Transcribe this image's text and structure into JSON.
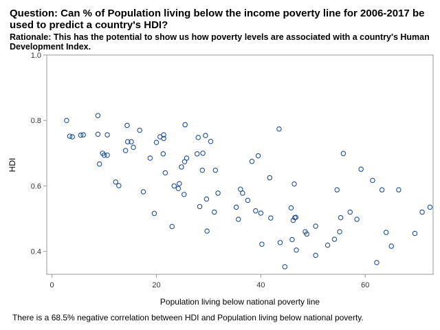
{
  "title": "Question: Can % of Population living below the income poverty line for 2006-2017 be used to predict a country's HDI?",
  "subtitle": "Rationale: This has the potential to show us how poverty levels are associated with a country's Human Development Index.",
  "footnote": "There is a 68.5% negative correlation between HDI and Population living below national poverty.",
  "colors": {
    "marker": "#1f4e9e",
    "frame": "#999999"
  },
  "chart_data": {
    "type": "scatter",
    "xlabel": "Population living below national poverty line",
    "ylabel": "HDI",
    "xlim": [
      -1,
      73
    ],
    "ylim": [
      0.33,
      1.0
    ],
    "xticks": [
      "0",
      "20",
      "40",
      "60"
    ],
    "xtick_values": [
      0,
      20,
      40,
      60
    ],
    "yticks": [
      "0.4",
      "0.6",
      "0.8",
      "1.0"
    ],
    "ytick_values": [
      0.4,
      0.6,
      0.8,
      1.0
    ],
    "points": [
      [
        2.8,
        0.8
      ],
      [
        3.4,
        0.752
      ],
      [
        3.9,
        0.75
      ],
      [
        5.5,
        0.755
      ],
      [
        6.0,
        0.756
      ],
      [
        8.8,
        0.815
      ],
      [
        8.8,
        0.758
      ],
      [
        9.1,
        0.667
      ],
      [
        9.7,
        0.7
      ],
      [
        10.0,
        0.694
      ],
      [
        10.6,
        0.756
      ],
      [
        10.6,
        0.694
      ],
      [
        12.2,
        0.612
      ],
      [
        12.8,
        0.601
      ],
      [
        14.1,
        0.708
      ],
      [
        14.4,
        0.785
      ],
      [
        14.5,
        0.735
      ],
      [
        15.2,
        0.735
      ],
      [
        15.6,
        0.718
      ],
      [
        16.8,
        0.77
      ],
      [
        17.5,
        0.582
      ],
      [
        18.8,
        0.685
      ],
      [
        19.6,
        0.516
      ],
      [
        20.0,
        0.733
      ],
      [
        20.7,
        0.75
      ],
      [
        21.4,
        0.756
      ],
      [
        21.4,
        0.745
      ],
      [
        21.3,
        0.698
      ],
      [
        21.7,
        0.64
      ],
      [
        23.0,
        0.476
      ],
      [
        23.4,
        0.6
      ],
      [
        24.2,
        0.592
      ],
      [
        24.4,
        0.607
      ],
      [
        24.8,
        0.658
      ],
      [
        25.3,
        0.574
      ],
      [
        25.4,
        0.674
      ],
      [
        25.5,
        0.787
      ],
      [
        25.8,
        0.685
      ],
      [
        27.8,
        0.698
      ],
      [
        28.0,
        0.748
      ],
      [
        28.3,
        0.537
      ],
      [
        28.8,
        0.648
      ],
      [
        28.9,
        0.7
      ],
      [
        29.4,
        0.754
      ],
      [
        29.6,
        0.56
      ],
      [
        29.7,
        0.462
      ],
      [
        30.4,
        0.736
      ],
      [
        31.1,
        0.52
      ],
      [
        31.3,
        0.648
      ],
      [
        31.8,
        0.578
      ],
      [
        35.3,
        0.535
      ],
      [
        35.7,
        0.498
      ],
      [
        36.1,
        0.59
      ],
      [
        36.5,
        0.578
      ],
      [
        37.5,
        0.556
      ],
      [
        38.3,
        0.675
      ],
      [
        39.0,
        0.524
      ],
      [
        39.5,
        0.692
      ],
      [
        40.0,
        0.517
      ],
      [
        40.2,
        0.422
      ],
      [
        41.7,
        0.625
      ],
      [
        41.9,
        0.502
      ],
      [
        43.5,
        0.774
      ],
      [
        43.7,
        0.427
      ],
      [
        44.6,
        0.353
      ],
      [
        45.8,
        0.533
      ],
      [
        46.0,
        0.436
      ],
      [
        46.2,
        0.495
      ],
      [
        46.4,
        0.606
      ],
      [
        46.5,
        0.503
      ],
      [
        46.7,
        0.504
      ],
      [
        46.8,
        0.404
      ],
      [
        48.5,
        0.46
      ],
      [
        48.8,
        0.453
      ],
      [
        50.5,
        0.477
      ],
      [
        50.5,
        0.388
      ],
      [
        52.8,
        0.419
      ],
      [
        54.1,
        0.437
      ],
      [
        54.6,
        0.588
      ],
      [
        55.1,
        0.46
      ],
      [
        55.3,
        0.503
      ],
      [
        55.8,
        0.699
      ],
      [
        57.1,
        0.52
      ],
      [
        58.4,
        0.498
      ],
      [
        59.2,
        0.651
      ],
      [
        61.4,
        0.617
      ],
      [
        62.2,
        0.366
      ],
      [
        63.2,
        0.588
      ],
      [
        64.0,
        0.458
      ],
      [
        65.0,
        0.416
      ],
      [
        66.4,
        0.588
      ],
      [
        69.5,
        0.455
      ],
      [
        70.9,
        0.52
      ],
      [
        72.4,
        0.535
      ]
    ]
  }
}
